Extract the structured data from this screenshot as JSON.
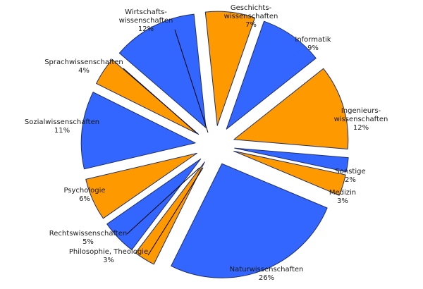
{
  "chart_data": {
    "type": "pie",
    "exploded": true,
    "colors": {
      "blue": "#3366ff",
      "orange": "#ff9900",
      "outline": "#1f2f6b"
    },
    "slices": [
      {
        "label": [
          "Geschichts-",
          "wissenschaften"
        ],
        "value": 7,
        "value_label": "7%",
        "color": "orange"
      },
      {
        "label": [
          "Informatik"
        ],
        "value": 9,
        "value_label": "9%",
        "color": "blue"
      },
      {
        "label": [
          "Ingenieurs-",
          "wissenschaften"
        ],
        "value": 12,
        "value_label": "12%",
        "color": "orange"
      },
      {
        "label": [
          "Sonstige"
        ],
        "value": 2,
        "value_label": "2%",
        "color": "blue"
      },
      {
        "label": [
          "Medizin"
        ],
        "value": 3,
        "value_label": "3%",
        "color": "orange"
      },
      {
        "label": [
          "Naturwissenschaften"
        ],
        "value": 26,
        "value_label": "26%",
        "color": "blue"
      },
      {
        "label": [
          "Philosophie, Theologie"
        ],
        "value": 3,
        "value_label": "3%",
        "color": "orange"
      },
      {
        "label": [
          "Rechtswissenschaften"
        ],
        "value": 5,
        "value_label": "5%",
        "color": "blue"
      },
      {
        "label": [
          "Psychologie"
        ],
        "value": 6,
        "value_label": "6%",
        "color": "orange"
      },
      {
        "label": [
          "Sozialwissenschaften"
        ],
        "value": 11,
        "value_label": "11%",
        "color": "blue"
      },
      {
        "label": [
          "Sprachwissenschaften"
        ],
        "value": 4,
        "value_label": "4%",
        "color": "orange"
      },
      {
        "label": [
          "Wirtschafts-",
          "wissenschaften"
        ],
        "value": 12,
        "value_label": "12%",
        "color": "blue"
      }
    ]
  }
}
